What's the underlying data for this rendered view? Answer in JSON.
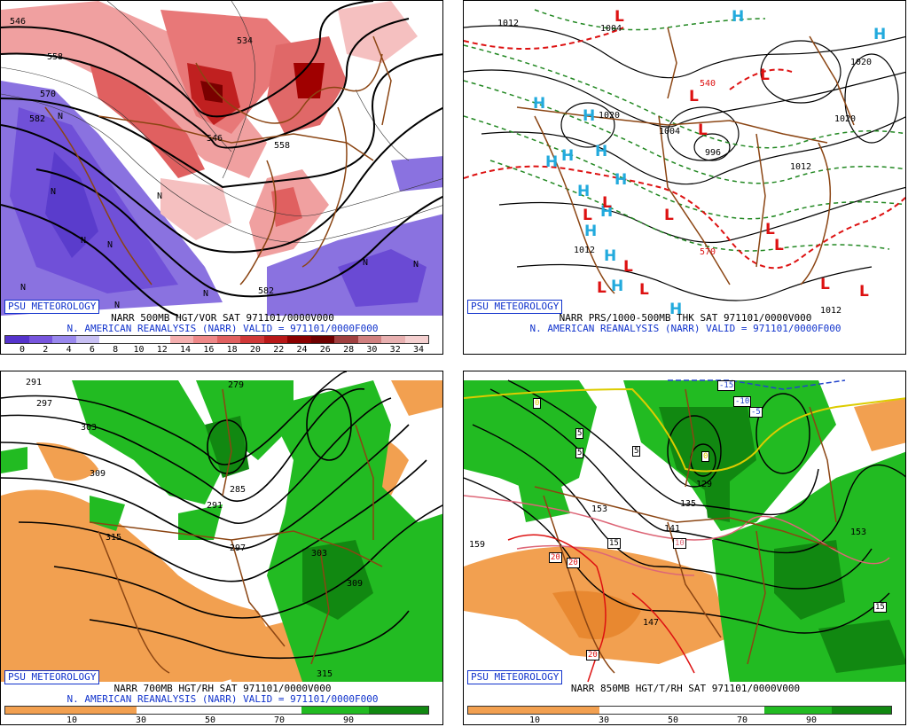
{
  "branding": "PSU METEOROLOGY",
  "colors": {
    "vor_low": "#7755dd",
    "vor_high": "#cc2233",
    "dry": "#f2a050",
    "moist": "#22bb22",
    "brown": "#8b4513"
  },
  "panels": {
    "p1": {
      "title": "NARR 500MB HGT/VOR SAT 971101/0000V000",
      "subtitle": "N. AMERICAN REANALYSIS (NARR) VALID = 971101/0000F000",
      "scale_ticks": [
        "0",
        "2",
        "4",
        "6",
        "8",
        "10",
        "12",
        "14",
        "16",
        "18",
        "20",
        "22",
        "24",
        "26",
        "28",
        "30",
        "32",
        "34"
      ],
      "scale_colors": [
        "#5533cc",
        "#7755dd",
        "#9988ee",
        "#c8c0f4",
        "#ffffff",
        "#ffffff",
        "#ffffff",
        "#f5b0b0",
        "#ee8888",
        "#e06060",
        "#d03838",
        "#b81818",
        "#8a0000",
        "#6e0000",
        "#a04040",
        "#d08080",
        "#e8b0b0",
        "#f5d0d0"
      ],
      "contour_labels": [
        "546",
        "558",
        "570",
        "582",
        "534",
        "546",
        "558",
        "582"
      ],
      "n_marks": [
        "N",
        "N",
        "N",
        "N",
        "N",
        "N",
        "N",
        "N",
        "N",
        "N"
      ]
    },
    "p2": {
      "title": "NARR PRS/1000-500MB THK SAT 971101/0000V000",
      "subtitle": "N. AMERICAN REANALYSIS (NARR) VALID = 971101/0000F000",
      "contour_labels": [
        "1012",
        "1004",
        "1020",
        "1004",
        "996",
        "1012",
        "1020",
        "1012",
        "1012",
        "1020",
        "540",
        "570"
      ],
      "high_marks": [
        "H",
        "H",
        "H",
        "H",
        "H",
        "H",
        "H",
        "H",
        "H",
        "H",
        "H",
        "H",
        "H",
        "H"
      ],
      "low_marks": [
        "L",
        "L",
        "L",
        "L",
        "L",
        "L",
        "L",
        "L",
        "L",
        "L",
        "L",
        "L",
        "L",
        "L"
      ]
    },
    "p3": {
      "title": "NARR 700MB HGT/RH SAT 971101/0000V000",
      "subtitle": "N. AMERICAN REANALYSIS (NARR) VALID = 971101/0000F000",
      "scale_ticks": [
        "10",
        "30",
        "50",
        "70",
        "90"
      ],
      "contour_labels": [
        "291",
        "297",
        "303",
        "309",
        "315",
        "285",
        "291",
        "297",
        "303",
        "309",
        "315"
      ]
    },
    "p4": {
      "title": "NARR 850MB HGT/T/RH SAT 971101/0000V000",
      "scale_ticks": [
        "10",
        "30",
        "50",
        "70",
        "90"
      ],
      "contour_labels": [
        "159",
        "153",
        "135",
        "129",
        "141",
        "147",
        "153"
      ],
      "temp_labels": [
        "0",
        "5",
        "5",
        "5",
        "0",
        "-15",
        "-10",
        "-5",
        "15",
        "10",
        "20",
        "20",
        "20",
        "15"
      ]
    }
  }
}
